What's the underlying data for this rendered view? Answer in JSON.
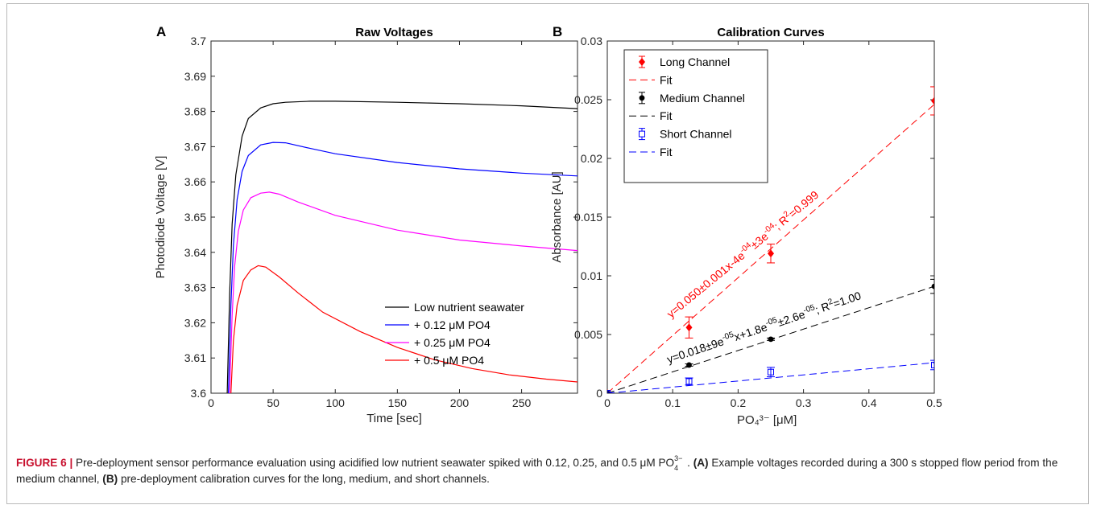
{
  "chart_data": [
    {
      "panel_label": "A",
      "type": "line",
      "title": "Raw Voltages",
      "xlabel": "Time [sec]",
      "ylabel": "Photodiode Voltage [V]",
      "xlim": [
        0,
        295
      ],
      "ylim": [
        3.6,
        3.7
      ],
      "xticks": [
        0,
        50,
        100,
        150,
        200,
        250
      ],
      "xtick_labels": [
        "0",
        "50",
        "100",
        "150",
        "200",
        "250"
      ],
      "yticks": [
        3.6,
        3.61,
        3.62,
        3.63,
        3.64,
        3.65,
        3.66,
        3.67,
        3.68,
        3.69,
        3.7
      ],
      "ytick_labels": [
        "3.6",
        "3.61",
        "3.62",
        "3.63",
        "3.64",
        "3.65",
        "3.66",
        "3.67",
        "3.68",
        "3.69",
        "3.7"
      ],
      "grid": false,
      "legend_position": "center-right",
      "series": [
        {
          "name": "Low nutrient seawater",
          "color": "#000000",
          "points": [
            [
              13,
              3.6
            ],
            [
              15,
              3.628
            ],
            [
              17,
              3.648
            ],
            [
              20,
              3.662
            ],
            [
              25,
              3.673
            ],
            [
              30,
              3.678
            ],
            [
              40,
              3.681
            ],
            [
              50,
              3.6822
            ],
            [
              60,
              3.6826
            ],
            [
              80,
              3.6829
            ],
            [
              100,
              3.6829
            ],
            [
              150,
              3.6826
            ],
            [
              200,
              3.6822
            ],
            [
              250,
              3.6816
            ],
            [
              295,
              3.6808
            ]
          ]
        },
        {
          "name": "+ 0.12 μM PO4",
          "color": "#0000ff",
          "points": [
            [
              14,
              3.6
            ],
            [
              16,
              3.625
            ],
            [
              18,
              3.642
            ],
            [
              21,
              3.655
            ],
            [
              25,
              3.663
            ],
            [
              30,
              3.6675
            ],
            [
              40,
              3.6705
            ],
            [
              50,
              3.6712
            ],
            [
              60,
              3.6711
            ],
            [
              80,
              3.6695
            ],
            [
              100,
              3.668
            ],
            [
              150,
              3.6655
            ],
            [
              200,
              3.6637
            ],
            [
              250,
              3.6625
            ],
            [
              295,
              3.6617
            ]
          ]
        },
        {
          "name": "+ 0.25 μM PO4",
          "color": "#ff00ff",
          "points": [
            [
              15,
              3.6
            ],
            [
              17,
              3.622
            ],
            [
              19,
              3.636
            ],
            [
              22,
              3.646
            ],
            [
              26,
              3.652
            ],
            [
              32,
              3.6555
            ],
            [
              40,
              3.6568
            ],
            [
              47,
              3.6571
            ],
            [
              55,
              3.6565
            ],
            [
              70,
              3.6543
            ],
            [
              100,
              3.6505
            ],
            [
              150,
              3.6463
            ],
            [
              200,
              3.6435
            ],
            [
              250,
              3.6418
            ],
            [
              295,
              3.6405
            ]
          ]
        },
        {
          "name": "+ 0.5 μM PO4",
          "color": "#ff0000",
          "points": [
            [
              16,
              3.6
            ],
            [
              18,
              3.615
            ],
            [
              21,
              3.625
            ],
            [
              26,
              3.632
            ],
            [
              32,
              3.635
            ],
            [
              38,
              3.6362
            ],
            [
              44,
              3.6358
            ],
            [
              55,
              3.633
            ],
            [
              70,
              3.6285
            ],
            [
              90,
              3.623
            ],
            [
              120,
              3.6175
            ],
            [
              150,
              3.613
            ],
            [
              180,
              3.6095
            ],
            [
              210,
              3.607
            ],
            [
              240,
              3.6052
            ],
            [
              270,
              3.604
            ],
            [
              295,
              3.6032
            ]
          ]
        }
      ]
    },
    {
      "panel_label": "B",
      "type": "scatter",
      "title": "Calibration Curves",
      "xlabel": "PO₄³⁻ [μM]",
      "ylabel": "Absorbance [AU]",
      "xlim": [
        0,
        0.5
      ],
      "ylim": [
        0,
        0.03
      ],
      "xticks": [
        0,
        0.1,
        0.2,
        0.3,
        0.4,
        0.5
      ],
      "xtick_labels": [
        "0",
        "0.1",
        "0.2",
        "0.3",
        "0.4",
        "0.5"
      ],
      "yticks": [
        0,
        0.005,
        0.01,
        0.015,
        0.02,
        0.025,
        0.03
      ],
      "ytick_labels": [
        "0",
        "0.005",
        "0.01",
        "0.015",
        "0.02",
        "0.025",
        "0.03"
      ],
      "grid": false,
      "legend_position": "top-left",
      "series": [
        {
          "name": "Long Channel",
          "color": "#ff0000",
          "marker": "diamond",
          "x": [
            0,
            0.125,
            0.25,
            0.5
          ],
          "y": [
            0,
            0.0056,
            0.0119,
            0.0249
          ],
          "err": [
            0,
            0.0009,
            0.0008,
            0.0012
          ],
          "fit_name": "Fit",
          "fit_x": [
            0,
            0.5
          ],
          "fit_y": [
            0,
            0.0246
          ],
          "fit_label": "y=0.050±0.001x-4e",
          "fit_label_exp1": "-04",
          "fit_label_mid": "±3e",
          "fit_label_exp2": "-04",
          "fit_label_r2": "; R",
          "fit_label_r2_exp": "2",
          "fit_label_r2_val": "=0.999"
        },
        {
          "name": "Medium Channel",
          "color": "#000000",
          "marker": "circle",
          "x": [
            0,
            0.125,
            0.25,
            0.5
          ],
          "y": [
            0,
            0.0024,
            0.0046,
            0.0091
          ],
          "err": [
            0,
            0.0001,
            0.0001,
            0.0006
          ],
          "fit_name": "Fit",
          "fit_x": [
            0,
            0.5
          ],
          "fit_y": [
            0,
            0.0091
          ],
          "fit_label": "y=0.018±9e",
          "fit_label_exp1": "-05",
          "fit_label_mid": "x+1.8e",
          "fit_label_exp2": "-05",
          "fit_label_mid2": "±2.6e",
          "fit_label_exp3": "-05",
          "fit_label_r2": "; R",
          "fit_label_r2_exp": "2",
          "fit_label_r2_val": "=1.00"
        },
        {
          "name": "Short Channel",
          "color": "#0000ff",
          "marker": "square",
          "x": [
            0,
            0.125,
            0.25,
            0.5
          ],
          "y": [
            0,
            0.001,
            0.0018,
            0.0024
          ],
          "err": [
            0,
            0.0003,
            0.0004,
            0.0004
          ],
          "fit_name": "Fit",
          "fit_x": [
            0,
            0.5
          ],
          "fit_y": [
            0,
            0.0026
          ]
        }
      ]
    }
  ],
  "caption": {
    "figure_label": "FIGURE 6 |",
    "text_1": " Pre-deployment sensor performance evaluation using acidified low nutrient seawater spiked with 0.12, 0.25, and 0.5 μM PO",
    "formula_sup": "3−",
    "formula_sub": "4",
    "text_2": ". ",
    "part_a": "(A)",
    "text_3": " Example voltages recorded during a 300 s stopped flow period from the medium channel, ",
    "part_b": "(B)",
    "text_4": " pre-deployment calibration curves for the long, medium, and short channels."
  }
}
